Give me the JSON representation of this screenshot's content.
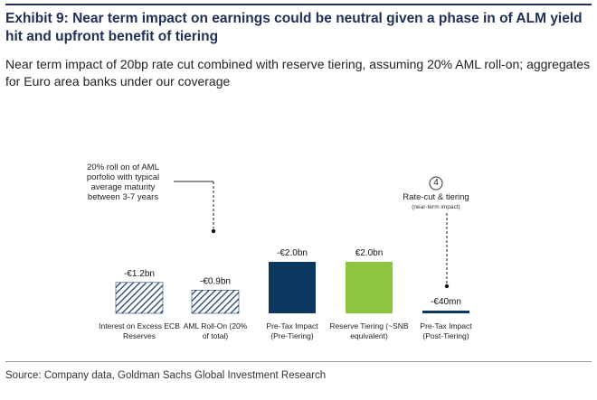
{
  "header": {
    "title": "Exhibit 9: Near term impact on earnings could be neutral given a phase in of ALM yield hit and upfront benefit of tiering",
    "subtitle": "Near term impact of 20bp rate cut combined with reserve tiering, assuming 20% AML roll-on; aggregates for Euro area banks under our coverage"
  },
  "footer": {
    "source": "Source: Company data, Goldman Sachs Global Investment Research"
  },
  "annotations": {
    "aml_note": "20% roll on of AML porfolio with typical average maturity between 3-7 years",
    "step_number": "4",
    "rate_cut_title": "Rate-cut & tiering",
    "rate_cut_sub": "(near-term impact)"
  },
  "colors": {
    "navy": "#0b3760",
    "green": "#8cc63f",
    "hatch": "#1f3f6e",
    "title": "#1f2f55"
  },
  "chart_data": {
    "type": "bar",
    "categories": [
      "Interest on Excess ECB Reserves",
      "AML Roll-On (20% of total)",
      "Pre-Tax Impact (Pre-Tiering)",
      "Reserve Tiering (~SNB equivalent)",
      "Pre-Tax Impact (Post-Tiering)"
    ],
    "values": [
      -1.2,
      -0.9,
      -2.0,
      2.0,
      -0.04
    ],
    "units": "EUR bn",
    "data_labels": [
      "-€1.2bn",
      "-€0.9bn",
      "-€2.0bn",
      "€2.0bn",
      "-€40mn"
    ],
    "styles": [
      "hatched",
      "hatched",
      "navy",
      "green",
      "navy"
    ]
  }
}
